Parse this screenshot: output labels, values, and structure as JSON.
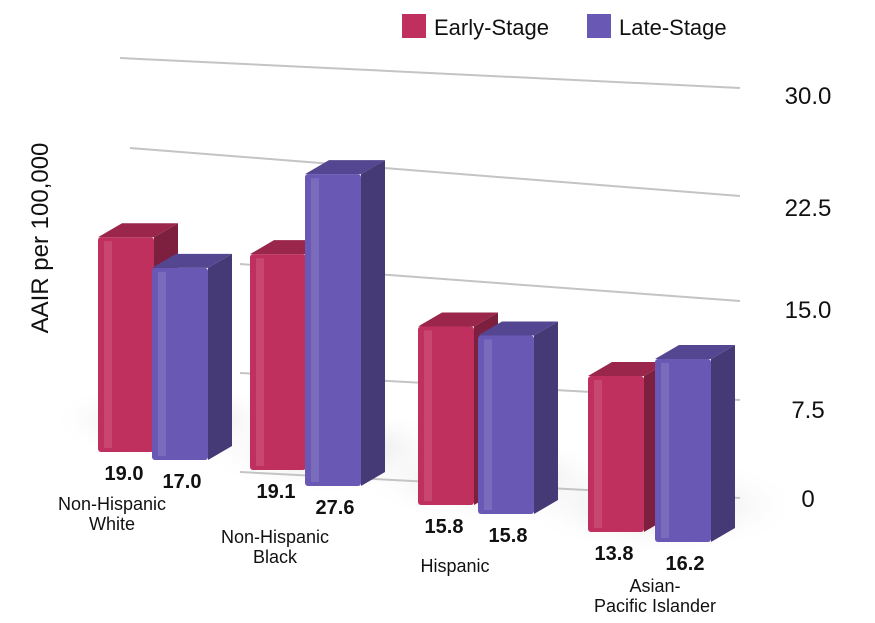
{
  "chart_data": {
    "type": "bar",
    "title": "",
    "ylabel": "AAIR per 100,000",
    "xlabel": "",
    "ylim": [
      0,
      30
    ],
    "yticks": [
      "0",
      "7.5",
      "15.0",
      "22.5",
      "30.0"
    ],
    "categories": [
      [
        "Non-Hispanic",
        "White"
      ],
      [
        "Non-Hispanic",
        "Black"
      ],
      [
        "Hispanic"
      ],
      [
        "Asian-",
        "Pacific Islander"
      ]
    ],
    "series": [
      {
        "name": "Early-Stage",
        "color": "#c0305f",
        "values": [
          19.0,
          19.1,
          15.8,
          13.8
        ],
        "labels": [
          "19.0",
          "19.1",
          "15.8",
          "13.8"
        ]
      },
      {
        "name": "Late-Stage",
        "color": "#6a58b5",
        "values": [
          17.0,
          27.6,
          15.8,
          16.2
        ],
        "labels": [
          "17.0",
          "27.6",
          "15.8",
          "16.2"
        ]
      }
    ],
    "legend_position": "top-right",
    "grid": true
  }
}
